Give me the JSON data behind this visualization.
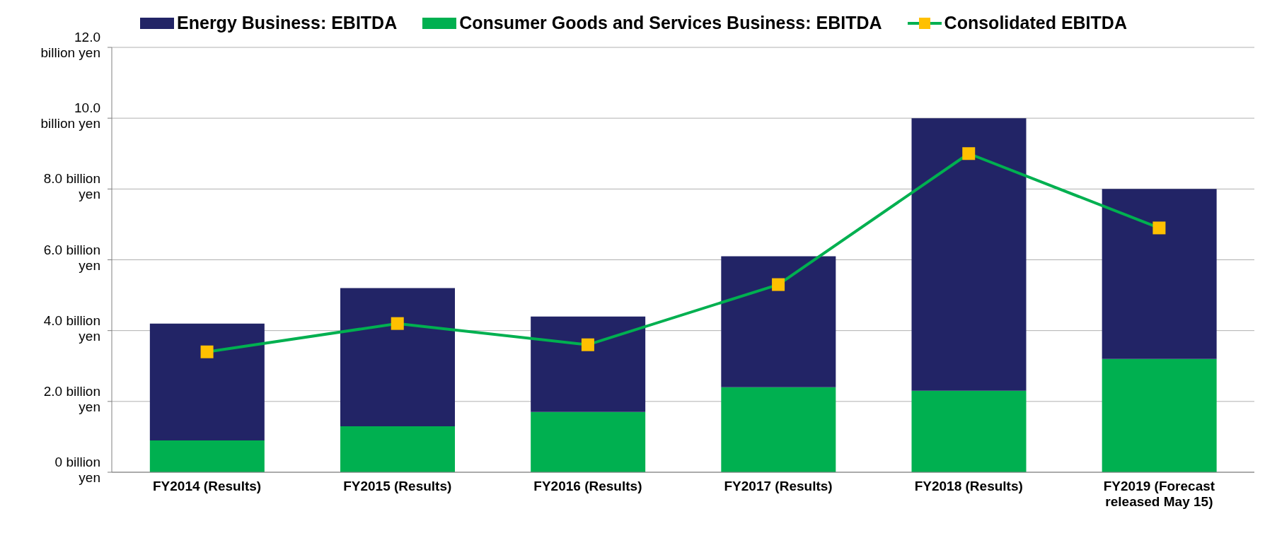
{
  "chart_data": {
    "type": "bar",
    "stacked": true,
    "categories": [
      "FY2014 (Results)",
      "FY2015 (Results)",
      "FY2016 (Results)",
      "FY2017 (Results)",
      "FY2018 (Results)",
      "FY2019 (Forecast released May 15)"
    ],
    "series": [
      {
        "name": "Consumer Goods and Services Business: EBITDA",
        "color": "#00b050",
        "values": [
          0.9,
          1.3,
          1.7,
          2.4,
          2.3,
          3.2
        ]
      },
      {
        "name": "Energy Business: EBITDA",
        "color": "#222466",
        "values": [
          3.3,
          3.9,
          2.7,
          3.7,
          7.7,
          4.8
        ]
      },
      {
        "name": "Consolidated EBITDA",
        "type": "line",
        "color": "#00b050",
        "colors": [
          "#ffc000",
          "#ffc000",
          "#ffc000",
          "#ffc000",
          "#ffc000",
          "#ffc000"
        ],
        "marker": "square",
        "values": [
          3.4,
          4.2,
          3.6,
          5.3,
          9.0,
          6.9
        ]
      }
    ],
    "ylim": [
      0,
      12
    ],
    "yticks": [
      {
        "value": 0,
        "label": "0 billion yen"
      },
      {
        "value": 2,
        "label": "2.0 billion yen"
      },
      {
        "value": 4,
        "label": "4.0 billion yen"
      },
      {
        "value": 6,
        "label": "6.0 billion yen"
      },
      {
        "value": 8,
        "label": "8.0 billion yen"
      },
      {
        "value": 10,
        "label": "10.0 billion yen"
      },
      {
        "value": 12,
        "label": "12.0 billion yen"
      }
    ],
    "grid": "y",
    "legend": "top"
  }
}
